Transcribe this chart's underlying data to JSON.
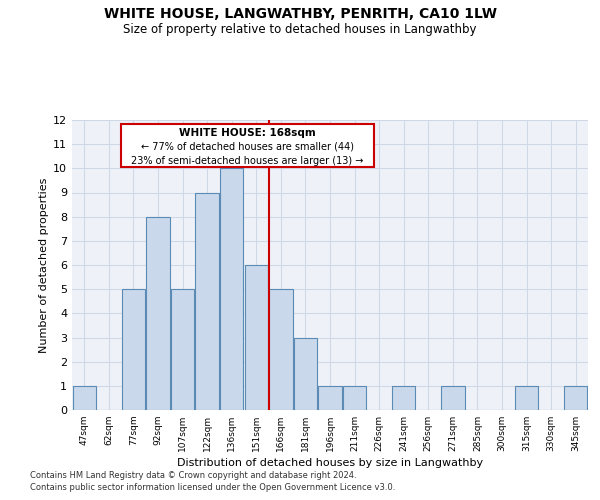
{
  "title": "WHITE HOUSE, LANGWATHBY, PENRITH, CA10 1LW",
  "subtitle": "Size of property relative to detached houses in Langwathby",
  "xlabel": "Distribution of detached houses by size in Langwathby",
  "ylabel": "Number of detached properties",
  "categories": [
    "47sqm",
    "62sqm",
    "77sqm",
    "92sqm",
    "107sqm",
    "122sqm",
    "136sqm",
    "151sqm",
    "166sqm",
    "181sqm",
    "196sqm",
    "211sqm",
    "226sqm",
    "241sqm",
    "256sqm",
    "271sqm",
    "285sqm",
    "300sqm",
    "315sqm",
    "330sqm",
    "345sqm"
  ],
  "bar_heights": [
    1,
    0,
    5,
    8,
    5,
    9,
    10,
    6,
    5,
    3,
    1,
    1,
    0,
    1,
    0,
    1,
    0,
    0,
    1,
    0,
    1
  ],
  "bar_color": "#c9d9eb",
  "bar_edge_color": "#5b8ab5",
  "vline_color": "#cc0000",
  "annotation_title": "WHITE HOUSE: 168sqm",
  "annotation_line1": "← 77% of detached houses are smaller (44)",
  "annotation_line2": "23% of semi-detached houses are larger (13) →",
  "annotation_box_color": "#cc0000",
  "ylim": [
    0,
    12
  ],
  "yticks": [
    0,
    1,
    2,
    3,
    4,
    5,
    6,
    7,
    8,
    9,
    10,
    11,
    12
  ],
  "grid_color": "#d0d8e8",
  "bg_color": "#eef2f8",
  "title_fontsize": 10,
  "subtitle_fontsize": 8.5,
  "footer_line1": "Contains HM Land Registry data © Crown copyright and database right 2024.",
  "footer_line2": "Contains public sector information licensed under the Open Government Licence v3.0."
}
